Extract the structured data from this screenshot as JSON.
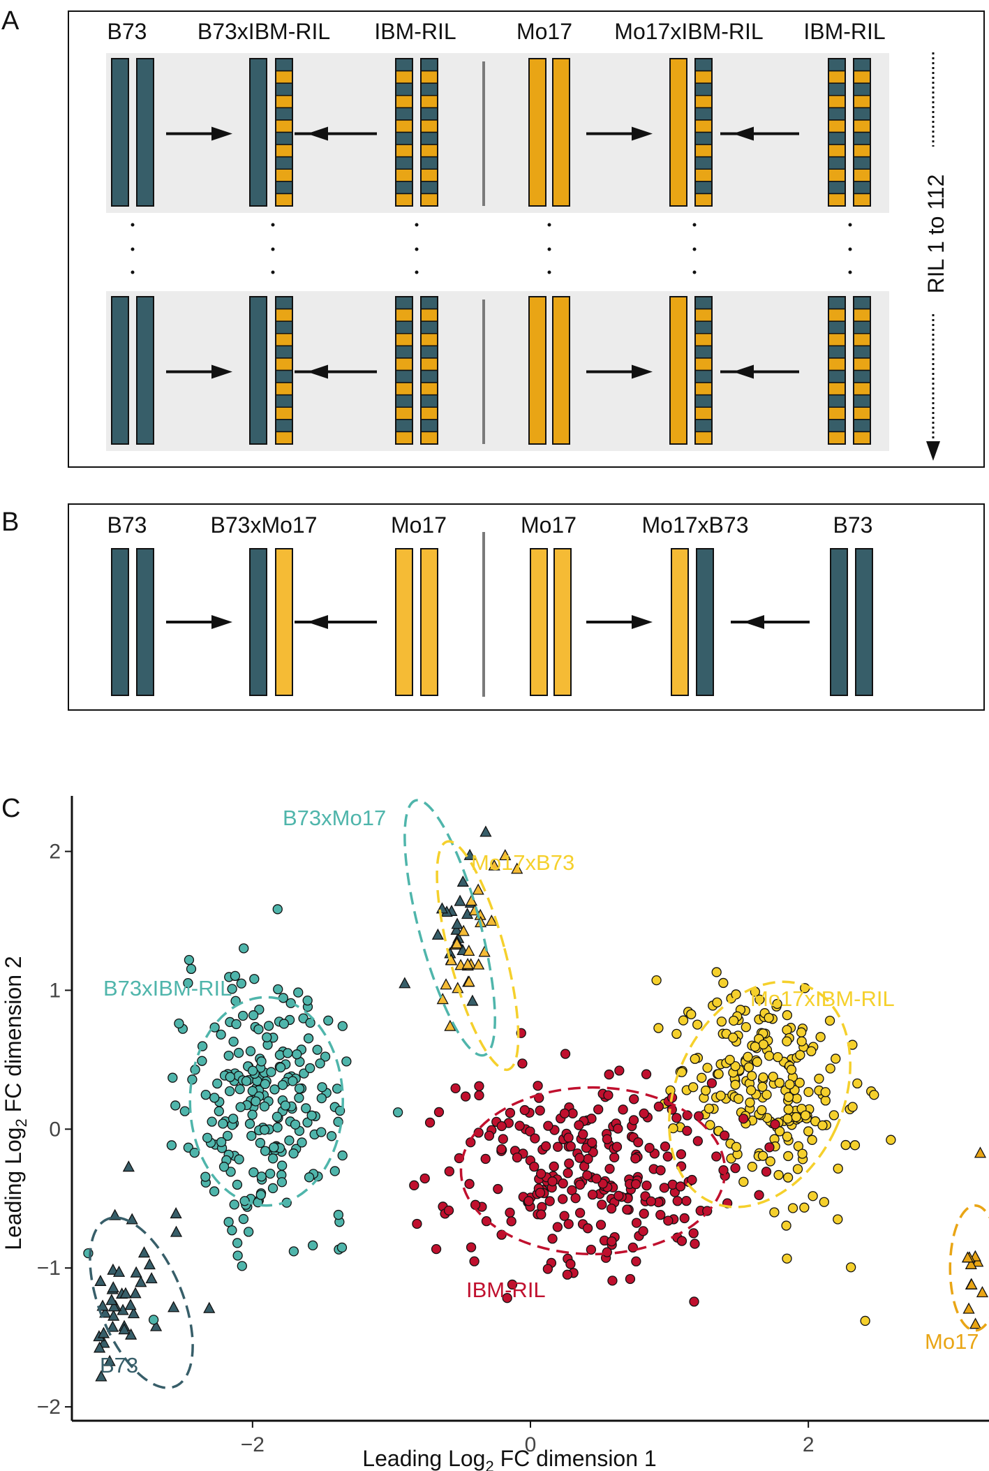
{
  "colors": {
    "b73": "#375e69",
    "mo17": "#e9a515",
    "mo17_light": "#f5bb35",
    "ril": "#c0102e",
    "b73_cross": "#4fb5ab",
    "mo17_cross": "#f5d02c",
    "panel_bg": "#ececec",
    "divider": "#7a7a7a"
  },
  "panel_a": {
    "letter": "A",
    "labels": [
      "B73",
      "B73xIBM-RIL",
      "IBM-RIL",
      "Mo17",
      "Mo17xIBM-RIL",
      "IBM-RIL"
    ],
    "ril_range_label": "RIL 1 to 112"
  },
  "panel_b": {
    "letter": "B",
    "labels": [
      "B73",
      "B73xMo17",
      "Mo17",
      "Mo17",
      "Mo17xB73",
      "B73"
    ]
  },
  "panel_c": {
    "letter": "C",
    "group_labels": {
      "b73xmo17": "B73xMo17",
      "mo17xb73": "Mo17xB73",
      "b73xibm": "B73xIBM-RIL",
      "mo17xibm": "Mo17xIBM-RIL",
      "ibm": "IBM-RIL",
      "b73": "B73",
      "mo17": "Mo17"
    }
  },
  "chart_data": {
    "type": "scatter",
    "xlabel_prefix": "Leading Log",
    "xlabel_sub": "2",
    "xlabel_suffix": " FC dimension 1",
    "ylabel_prefix": "Leading Log",
    "ylabel_sub": "2",
    "ylabel_suffix": " FC dimension 2",
    "xticks": [
      -2,
      0,
      2
    ],
    "yticks": [
      -2,
      -1,
      0,
      1,
      2
    ],
    "xlim": [
      -3.3,
      3.3
    ],
    "ylim": [
      -2.1,
      2.4
    ],
    "series": [
      {
        "key": "b73",
        "marker": "triangle",
        "color": "#375e69",
        "center": [
          -2.9,
          -1.2
        ],
        "n": 40,
        "spread": [
          0.15,
          0.3
        ],
        "rotation": -20
      },
      {
        "key": "mo17",
        "marker": "triangle",
        "color": "#e9a515",
        "center": [
          3.3,
          -1.0
        ],
        "n": 40,
        "spread": [
          0.12,
          0.25
        ],
        "rotation": 0
      },
      {
        "key": "b73xmo17",
        "marker": "triangle",
        "color": "#375e69",
        "center": [
          -0.55,
          1.5
        ],
        "n": 20,
        "spread": [
          0.12,
          0.35
        ],
        "rotation": -15
      },
      {
        "key": "mo17xb73",
        "marker": "triangle",
        "color": "#f5bb35",
        "center": [
          -0.45,
          1.3
        ],
        "n": 25,
        "spread": [
          0.1,
          0.35
        ],
        "rotation": -15
      },
      {
        "key": "b73xibm",
        "marker": "circle",
        "color": "#4fb5ab",
        "center": [
          -1.9,
          0.2
        ],
        "n": 230,
        "spread": [
          0.3,
          0.45
        ],
        "rotation": 0
      },
      {
        "key": "mo17xibm",
        "marker": "circle",
        "color": "#f5d02c",
        "center": [
          1.7,
          0.3
        ],
        "n": 220,
        "spread": [
          0.3,
          0.45
        ],
        "rotation": 25
      },
      {
        "key": "ibm",
        "marker": "circle",
        "color": "#c0102e",
        "center": [
          0.4,
          -0.3
        ],
        "n": 260,
        "spread": [
          0.5,
          0.35
        ],
        "rotation": 0
      }
    ],
    "ellipses": [
      {
        "key": "b73",
        "color": "#375e69",
        "center": [
          -2.8,
          -1.25
        ],
        "rx": 0.3,
        "ry": 0.65,
        "rotation": -22
      },
      {
        "key": "mo17",
        "color": "#e9a515",
        "center": [
          3.2,
          -1.0
        ],
        "rx": 0.18,
        "ry": 0.45,
        "rotation": 0
      },
      {
        "key": "b73xmo17",
        "color": "#4fb5ab",
        "center": [
          -0.58,
          1.45
        ],
        "rx": 0.22,
        "ry": 0.95,
        "rotation": -15
      },
      {
        "key": "mo17xb73",
        "color": "#f5d02c",
        "center": [
          -0.38,
          1.25
        ],
        "rx": 0.2,
        "ry": 0.85,
        "rotation": -15
      },
      {
        "key": "b73xibm",
        "color": "#4fb5ab",
        "center": [
          -1.9,
          0.2
        ],
        "rx": 0.55,
        "ry": 0.75,
        "rotation": 0
      },
      {
        "key": "mo17xibm",
        "color": "#f5d02c",
        "center": [
          1.65,
          0.25
        ],
        "rx": 0.6,
        "ry": 0.85,
        "rotation": 25
      },
      {
        "key": "ibm",
        "color": "#c0102e",
        "center": [
          0.45,
          -0.3
        ],
        "rx": 0.95,
        "ry": 0.6,
        "rotation": 0
      }
    ]
  }
}
